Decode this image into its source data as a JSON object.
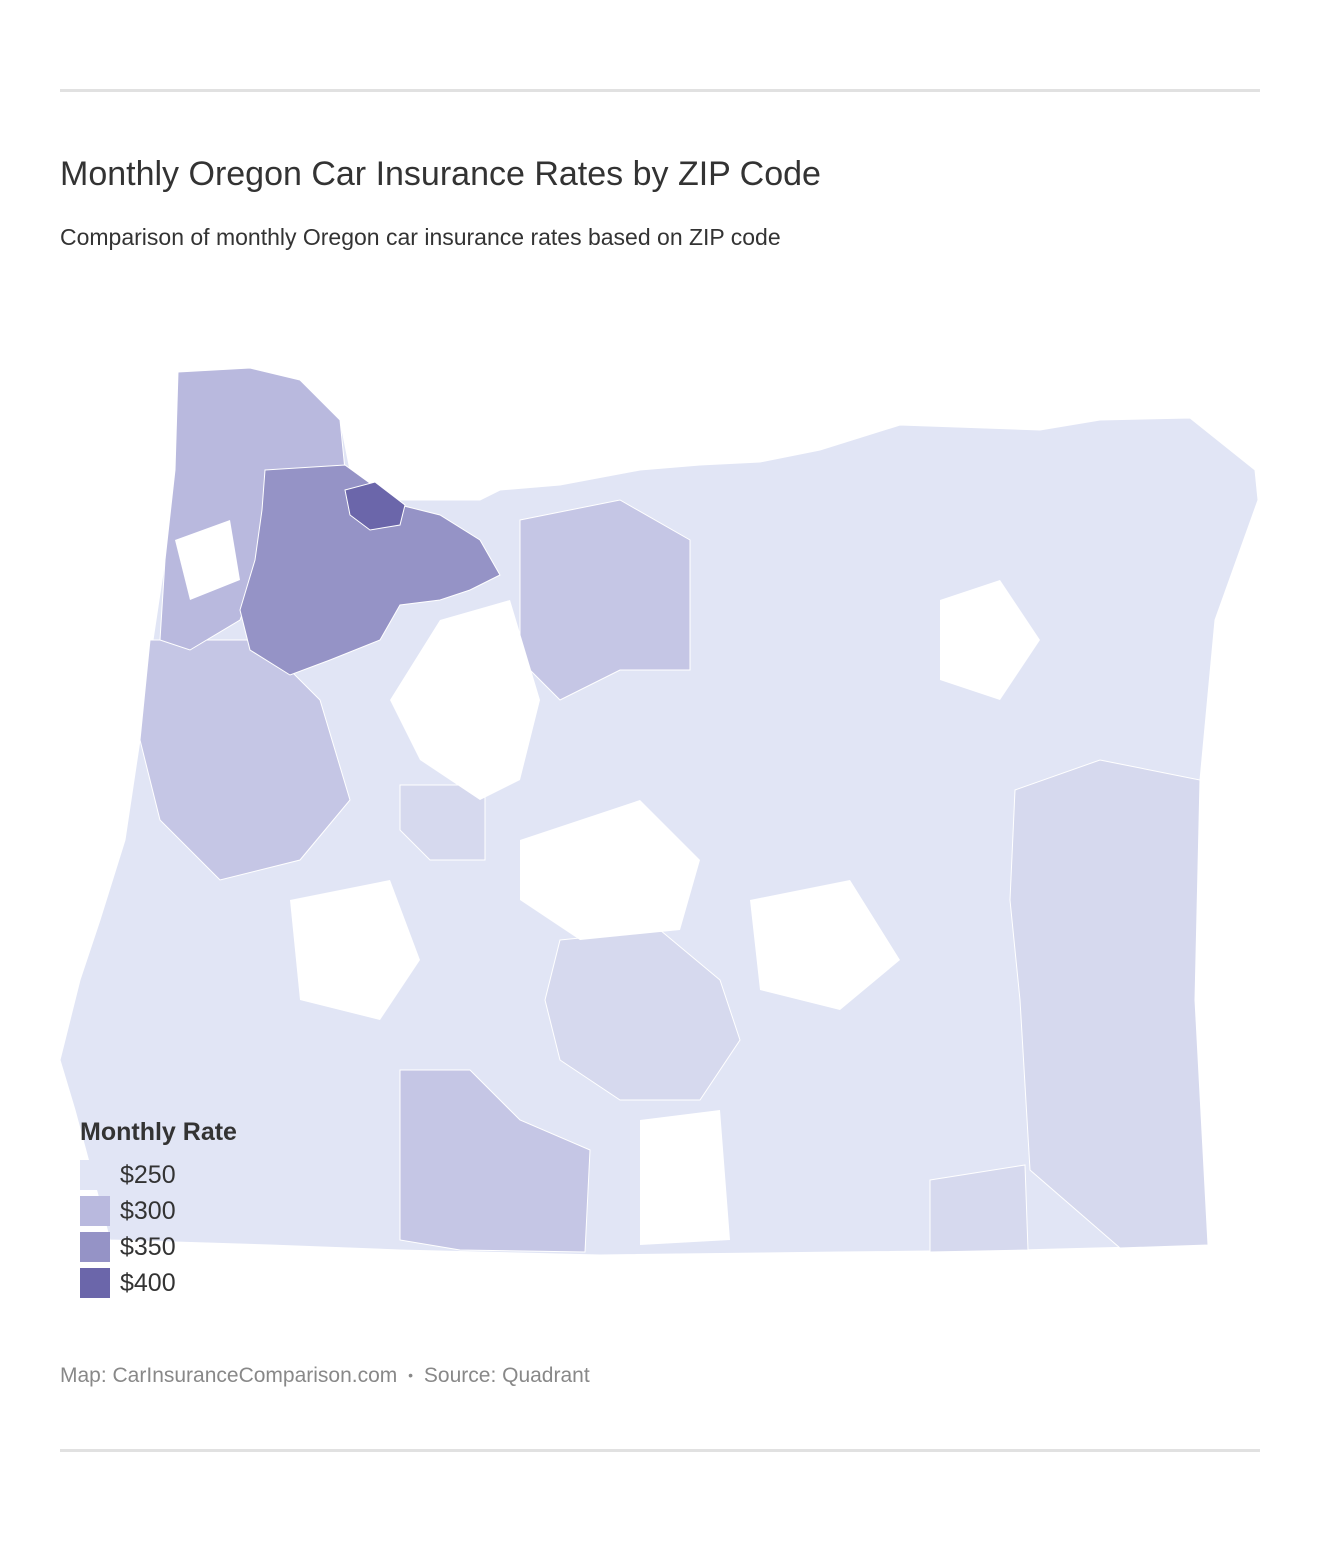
{
  "title": "Monthly Oregon Car Insurance Rates by ZIP Code",
  "subtitle": "Comparison of monthly Oregon car insurance rates based on ZIP code",
  "legend": {
    "title": "Monthly Rate",
    "items": [
      {
        "label": "$250",
        "color": "#e1e5f5"
      },
      {
        "label": "$300",
        "color": "#b9b9de"
      },
      {
        "label": "$350",
        "color": "#9593c6"
      },
      {
        "label": "$400",
        "color": "#6b66aa"
      }
    ]
  },
  "footer": {
    "map_credit": "Map: CarInsuranceComparison.com",
    "separator": "•",
    "source": "Source: Quadrant"
  },
  "map": {
    "region": "Oregon",
    "base_color": "#e1e5f5",
    "mid_color": "#d6d9ee",
    "light_purple": "#c5c6e5",
    "medium_purple": "#9593c6",
    "dark_purple": "#6b66aa"
  }
}
